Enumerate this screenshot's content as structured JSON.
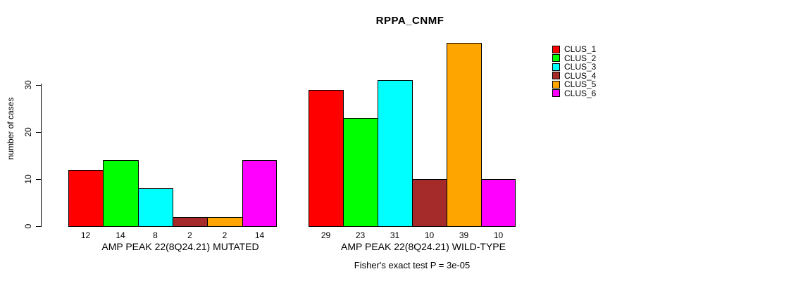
{
  "chart_data": {
    "type": "bar",
    "title": "RPPA_CNMF",
    "ylabel": "number of cases",
    "ylim": [
      0,
      40
    ],
    "yticks": [
      0,
      10,
      20,
      30
    ],
    "grid": false,
    "legend_position": "right",
    "series_names": [
      "CLUS_1",
      "CLUS_2",
      "CLUS_3",
      "CLUS_4",
      "CLUS_5",
      "CLUS_6"
    ],
    "colors": [
      "#FF0000",
      "#00FF00",
      "#00FFFF",
      "#A52A2A",
      "#FFA500",
      "#FF00FF"
    ],
    "groups": [
      {
        "label": "AMP PEAK 22(8Q24.21) MUTATED",
        "values": [
          12,
          14,
          8,
          2,
          2,
          14
        ]
      },
      {
        "label": "AMP PEAK 22(8Q24.21) WILD-TYPE",
        "values": [
          29,
          23,
          31,
          10,
          39,
          10
        ]
      }
    ],
    "annotation": "Fisher's exact test P = 3e-05"
  }
}
